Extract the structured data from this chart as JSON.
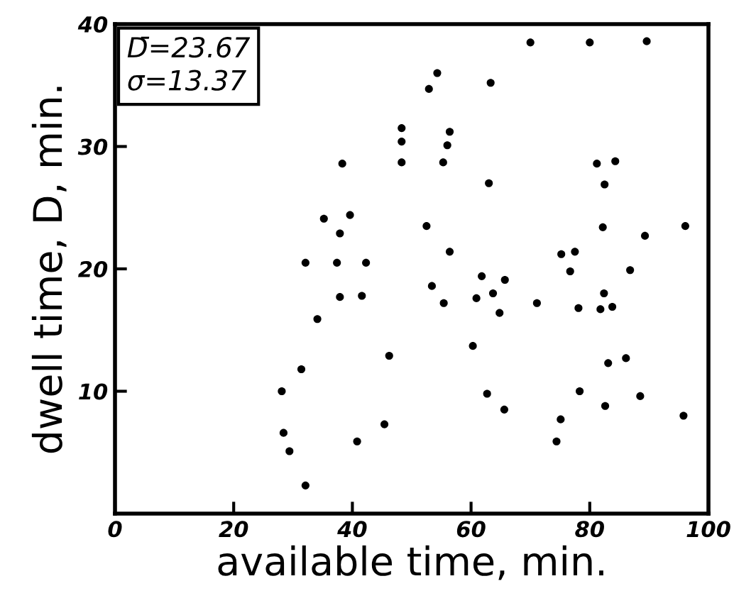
{
  "chart_data": {
    "type": "scatter",
    "xlabel": "available time, min.",
    "ylabel": "dwell time, D, min.",
    "annotations": [
      "D̄=23.67\nσ=13.37"
    ],
    "x": [
      70.0,
      80.0,
      89.6,
      54.3,
      52.9,
      63.3,
      48.3,
      48.3,
      56.4,
      56.0,
      48.3,
      55.3,
      38.3,
      81.2,
      84.3,
      82.5,
      63.0,
      35.2,
      39.6,
      37.9,
      52.5,
      82.2,
      96.1,
      89.3,
      56.4,
      75.2,
      77.5,
      76.7,
      86.8,
      61.8,
      65.7,
      32.1,
      37.4,
      42.3,
      53.4,
      37.9,
      41.6,
      55.4,
      60.9,
      63.7,
      64.8,
      71.1,
      78.1,
      81.8,
      83.8,
      82.4,
      34.1,
      60.3,
      46.2,
      31.4,
      83.1,
      86.1,
      28.1,
      62.7,
      78.3,
      88.5,
      65.6,
      82.6,
      95.8,
      75.1,
      45.4,
      28.4,
      40.8,
      74.4,
      29.4,
      32.1
    ],
    "values": [
      38.5,
      38.5,
      38.6,
      36.0,
      34.7,
      35.2,
      31.5,
      30.4,
      31.2,
      30.1,
      28.7,
      28.7,
      28.6,
      28.6,
      28.8,
      26.9,
      27.0,
      24.1,
      24.4,
      22.9,
      23.5,
      23.4,
      23.5,
      22.7,
      21.4,
      21.2,
      21.4,
      19.8,
      19.9,
      19.4,
      19.1,
      20.5,
      20.5,
      20.5,
      18.6,
      17.7,
      17.8,
      17.2,
      17.6,
      18.0,
      16.4,
      17.2,
      16.8,
      16.7,
      16.9,
      18.0,
      15.9,
      13.7,
      12.9,
      11.8,
      12.3,
      12.7,
      10.0,
      9.8,
      10.0,
      9.6,
      8.5,
      8.8,
      8.0,
      7.7,
      7.3,
      6.6,
      5.9,
      5.9,
      5.1,
      2.3
    ],
    "color": "#000000",
    "marker": "circle",
    "grid": false,
    "legend": false,
    "xlim": [
      0,
      100
    ],
    "ylim": [
      0,
      40
    ],
    "xticks": [
      0,
      20,
      40,
      60,
      80,
      100
    ],
    "yticks": [
      10,
      20,
      30,
      40
    ]
  }
}
